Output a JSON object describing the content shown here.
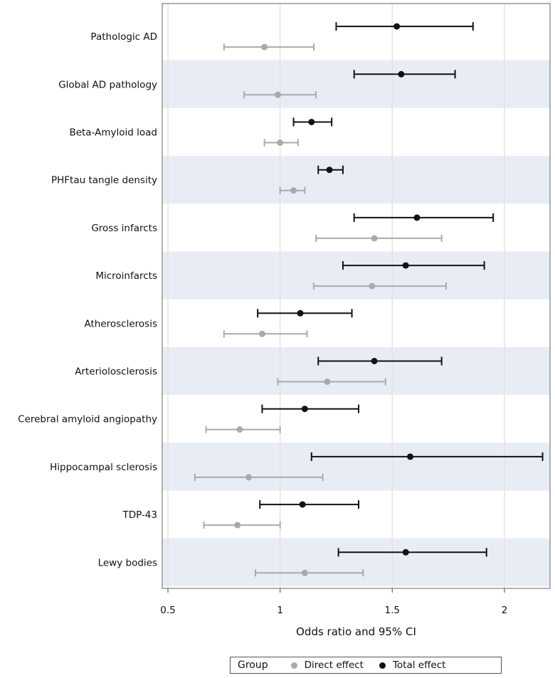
{
  "chart_data": {
    "type": "forest",
    "xlabel": "Odds ratio and 95% CI",
    "xlim": [
      0.475,
      2.2
    ],
    "xticks": [
      0.5,
      1,
      1.5,
      2
    ],
    "xtick_labels": [
      "0.5",
      "1",
      "1.5",
      "2"
    ],
    "grid": true,
    "legend": {
      "title": "Group",
      "placement": "bottom",
      "entries": [
        "Direct effect",
        "Total effect"
      ]
    },
    "colors": {
      "Direct effect": "#aaaaaa",
      "Total effect": "#111111",
      "band": "#e8ecf4"
    },
    "categories": [
      "Pathologic AD",
      "Global AD pathology",
      "Beta-Amyloid load",
      "PHFtau tangle density",
      "Gross infarcts",
      "Microinfarcts",
      "Atherosclerosis",
      "Arteriolosclerosis",
      "Cerebral amyloid angiopathy",
      "Hippocampal sclerosis",
      "TDP-43",
      "Lewy bodies"
    ],
    "series": [
      {
        "name": "Total effect",
        "or": [
          1.52,
          1.54,
          1.14,
          1.22,
          1.61,
          1.56,
          1.09,
          1.42,
          1.11,
          1.58,
          1.1,
          1.56
        ],
        "lower": [
          1.25,
          1.33,
          1.06,
          1.17,
          1.33,
          1.28,
          0.9,
          1.17,
          0.92,
          1.14,
          0.91,
          1.26
        ],
        "upper": [
          1.86,
          1.78,
          1.23,
          1.28,
          1.95,
          1.91,
          1.32,
          1.72,
          1.35,
          2.17,
          1.35,
          1.92
        ]
      },
      {
        "name": "Direct effect",
        "or": [
          0.93,
          0.99,
          1.0,
          1.06,
          1.42,
          1.41,
          0.92,
          1.21,
          0.82,
          0.86,
          0.81,
          1.11
        ],
        "lower": [
          0.75,
          0.84,
          0.93,
          1.0,
          1.16,
          1.15,
          0.75,
          0.99,
          0.67,
          0.62,
          0.66,
          0.89
        ],
        "upper": [
          1.15,
          1.16,
          1.08,
          1.11,
          1.72,
          1.74,
          1.12,
          1.47,
          1.0,
          1.19,
          1.0,
          1.37
        ]
      }
    ]
  }
}
